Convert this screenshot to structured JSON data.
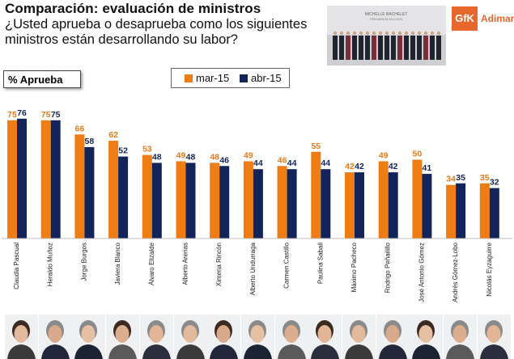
{
  "header": {
    "title": "Comparación: evaluación de ministros",
    "question": "¿Usted aprueba o desaprueba como los siguientes ministros están desarrollando su labor?",
    "metric_label": "% Aprueba"
  },
  "photo": {
    "caption_line1": "MICHELLE BACHELET",
    "caption_line2": "PRESIDENTA 2014-2018"
  },
  "logo": {
    "mark": "GfK",
    "name": "Adimark"
  },
  "colors": {
    "mar": "#f07d14",
    "abr": "#13245b",
    "label_mar": "#e8791a",
    "label_abr": "#13245b"
  },
  "chart_data": {
    "type": "bar",
    "title": "Comparación: evaluación de ministros",
    "ylabel": "% Aprueba",
    "ylim": [
      0,
      100
    ],
    "categories": [
      "Claudia Pascual",
      "Heraldo Muñoz",
      "Jorge Burgos",
      "Javiera Blanco",
      "Álvaro Elizalde",
      "Alberto Arenas",
      "Ximena Rincón",
      "Alberto Undurraga",
      "Carmen Castillo",
      "Paulina Saball",
      "Máximo Pacheco",
      "Rodrigo Peñailillo",
      "José Antonio Gómez",
      "Andrés Gómez-Lobo",
      "Nicolás Eyzaguirre"
    ],
    "series": [
      {
        "name": "mar-15",
        "values": [
          75,
          75,
          66,
          62,
          53,
          49,
          48,
          49,
          46,
          55,
          42,
          49,
          50,
          34,
          35
        ]
      },
      {
        "name": "abr-15",
        "values": [
          76,
          75,
          58,
          52,
          48,
          48,
          46,
          44,
          44,
          44,
          42,
          42,
          41,
          35,
          32
        ]
      }
    ],
    "legend": "top"
  }
}
